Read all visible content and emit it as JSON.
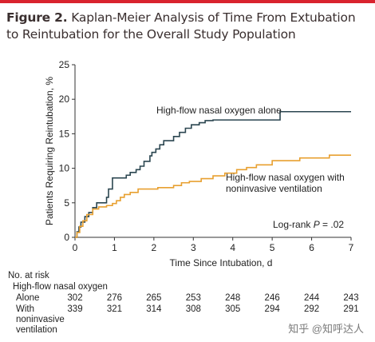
{
  "figure": {
    "title_prefix": "Figure 2.",
    "title_rest": "Kaplan-Meier Analysis of Time From Extubation",
    "title_line2": "to Reintubation for the Overall Study Population"
  },
  "chart_data": {
    "type": "line",
    "step": true,
    "xlabel": "Time Since Intubation, d",
    "ylabel": "Patients Requiring Reintubation, %",
    "xlim": [
      0,
      7
    ],
    "ylim": [
      0,
      25
    ],
    "xticks": [
      0,
      1,
      2,
      3,
      4,
      5,
      6,
      7
    ],
    "yticks": [
      0,
      5,
      10,
      15,
      20,
      25
    ],
    "grid": false,
    "annotation_prefix": "Log-rank ",
    "annotation_p": "P",
    "annotation_suffix": " = .02",
    "series": [
      {
        "name": "High-flow nasal oxygen alone",
        "color": "#2b4650",
        "points": [
          [
            0,
            0
          ],
          [
            0.05,
            0.8
          ],
          [
            0.1,
            1.5
          ],
          [
            0.15,
            2.2
          ],
          [
            0.25,
            3.0
          ],
          [
            0.35,
            3.6
          ],
          [
            0.45,
            4.3
          ],
          [
            0.55,
            5.0
          ],
          [
            0.8,
            5.8
          ],
          [
            0.85,
            7.0
          ],
          [
            0.95,
            8.6
          ],
          [
            1.3,
            9.0
          ],
          [
            1.4,
            9.4
          ],
          [
            1.55,
            9.8
          ],
          [
            1.65,
            10.3
          ],
          [
            1.75,
            11.0
          ],
          [
            1.9,
            11.8
          ],
          [
            1.95,
            12.3
          ],
          [
            2.05,
            12.8
          ],
          [
            2.15,
            13.4
          ],
          [
            2.25,
            14.0
          ],
          [
            2.5,
            14.6
          ],
          [
            2.65,
            15.2
          ],
          [
            2.8,
            15.8
          ],
          [
            2.95,
            16.3
          ],
          [
            3.15,
            16.6
          ],
          [
            3.3,
            16.9
          ],
          [
            3.5,
            17.0
          ],
          [
            5.2,
            18.2
          ],
          [
            7,
            18.2
          ]
        ]
      },
      {
        "name": "High-flow nasal oxygen with\nnoninvasive ventilation",
        "color": "#e8a030",
        "points": [
          [
            0,
            0
          ],
          [
            0.05,
            0.7
          ],
          [
            0.12,
            1.6
          ],
          [
            0.2,
            2.4
          ],
          [
            0.3,
            3.3
          ],
          [
            0.45,
            4.1
          ],
          [
            0.6,
            4.4
          ],
          [
            0.8,
            4.6
          ],
          [
            0.95,
            4.9
          ],
          [
            1.05,
            5.3
          ],
          [
            1.15,
            5.8
          ],
          [
            1.25,
            6.2
          ],
          [
            1.4,
            6.5
          ],
          [
            1.6,
            7.0
          ],
          [
            2.1,
            7.2
          ],
          [
            2.5,
            7.5
          ],
          [
            2.7,
            7.9
          ],
          [
            2.9,
            8.1
          ],
          [
            3.2,
            8.5
          ],
          [
            3.5,
            8.9
          ],
          [
            3.8,
            9.3
          ],
          [
            4.1,
            9.8
          ],
          [
            4.35,
            10.1
          ],
          [
            4.6,
            10.5
          ],
          [
            5.0,
            11.1
          ],
          [
            5.7,
            11.5
          ],
          [
            6.45,
            11.9
          ],
          [
            7,
            11.9
          ]
        ]
      }
    ]
  },
  "risk_table": {
    "heading": "No. at risk",
    "group_heading": "High-flow nasal oxygen",
    "rows": [
      {
        "label_lines": [
          "Alone"
        ],
        "values": [
          "302",
          "276",
          "265",
          "253",
          "248",
          "246",
          "244",
          "243"
        ]
      },
      {
        "label_lines": [
          "With",
          "noninvasive",
          "ventilation"
        ],
        "values": [
          "339",
          "321",
          "314",
          "308",
          "305",
          "294",
          "292",
          "291"
        ]
      }
    ]
  },
  "watermark": "知乎 @知呼达人"
}
